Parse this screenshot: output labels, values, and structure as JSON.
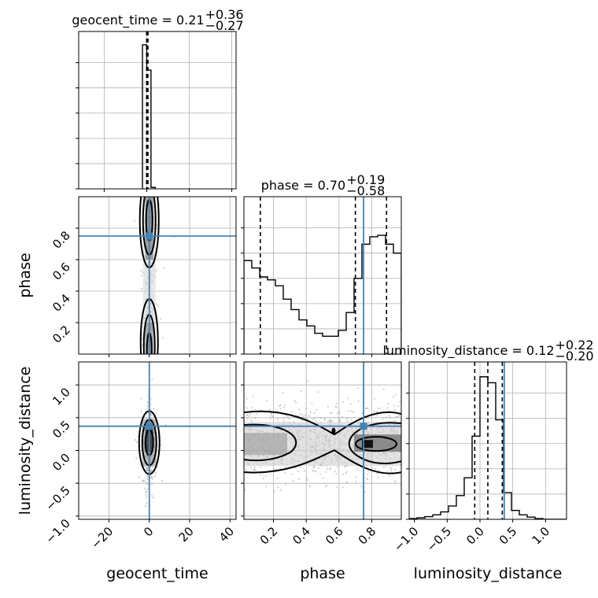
{
  "chart_data": [
    {
      "type": "histogram",
      "panel": "geocent_time-1d",
      "title": {
        "base": "geocent_time = 0.21",
        "sup": "+0.36",
        "sub": "−0.27"
      },
      "xlim": [
        -32,
        42
      ],
      "bin_edges": [
        -2,
        0,
        2,
        4
      ],
      "values": [
        0.97,
        0.8,
        0.01
      ],
      "quantiles": [
        -0.06,
        0.21,
        0.57
      ],
      "grid": true
    },
    {
      "type": "histogram",
      "panel": "phase-1d",
      "title": {
        "base": "phase = 0.70",
        "sup": "+0.19",
        "sub": "−0.58"
      },
      "xlim": [
        0.02,
        0.98
      ],
      "bin_edges": [
        0.02,
        0.068,
        0.116,
        0.164,
        0.212,
        0.26,
        0.308,
        0.356,
        0.404,
        0.452,
        0.5,
        0.548,
        0.596,
        0.644,
        0.692,
        0.74,
        0.788,
        0.836,
        0.884,
        0.932,
        0.98
      ],
      "values": [
        0.63,
        0.58,
        0.52,
        0.5,
        0.46,
        0.37,
        0.3,
        0.23,
        0.19,
        0.14,
        0.12,
        0.12,
        0.16,
        0.28,
        0.51,
        0.74,
        0.79,
        0.8,
        0.74,
        0.68
      ],
      "quantiles": [
        0.12,
        0.7,
        0.89
      ],
      "truth": 0.75,
      "grid": true
    },
    {
      "type": "histogram",
      "panel": "luminosity_distance-1d",
      "title": {
        "base": "luminosity_distance = 0.12",
        "sup": "+0.22",
        "sub": "−0.20"
      },
      "xlim": [
        -1.08,
        1.32
      ],
      "bin_edges": [
        -1.08,
        -0.96,
        -0.84,
        -0.72,
        -0.6,
        -0.48,
        -0.36,
        -0.24,
        -0.12,
        0.0,
        0.12,
        0.24,
        0.36,
        0.48,
        0.6,
        0.72,
        0.84,
        0.96,
        1.08,
        1.2,
        1.32
      ],
      "values": [
        0.005,
        0.01,
        0.018,
        0.03,
        0.05,
        0.09,
        0.16,
        0.28,
        0.56,
        0.96,
        0.92,
        0.67,
        0.18,
        0.06,
        0.03,
        0.015,
        0.005,
        0,
        0,
        0
      ],
      "quantiles": [
        -0.08,
        0.12,
        0.34
      ],
      "truth": 0.37,
      "grid": true
    },
    {
      "type": "scatter-contour",
      "panel": "geocent_time-vs-phase",
      "xlim": [
        -35,
        43
      ],
      "ylim": [
        0.0,
        1.0
      ],
      "truth": [
        0,
        0.75
      ],
      "grid": true
    },
    {
      "type": "scatter-contour",
      "panel": "geocent_time-vs-luminosity_distance",
      "xlim": [
        -35,
        43
      ],
      "ylim": [
        -1.05,
        1.35
      ],
      "truth": [
        0,
        0.37
      ],
      "grid": true
    },
    {
      "type": "scatter-contour",
      "panel": "phase-vs-luminosity_distance",
      "xlim": [
        0.02,
        0.98
      ],
      "ylim": [
        -1.05,
        1.35
      ],
      "truth": [
        0.75,
        0.37
      ],
      "grid": true
    }
  ],
  "axes": {
    "geocent_time": {
      "label": "geocent_time",
      "ticks": [
        "−20",
        "0",
        "20",
        "40"
      ],
      "tick_values": [
        -20,
        0,
        20,
        40
      ]
    },
    "phase_x": {
      "label": "phase",
      "ticks": [
        "0.2",
        "0.4",
        "0.6",
        "0.8"
      ],
      "tick_values": [
        0.2,
        0.4,
        0.6,
        0.8
      ]
    },
    "phase_y": {
      "label": "phase",
      "ticks": [
        "0.2",
        "0.4",
        "0.6",
        "0.8"
      ],
      "tick_values": [
        0.2,
        0.4,
        0.6,
        0.8
      ]
    },
    "luminosity_distance_x": {
      "label": "luminosity_distance",
      "ticks": [
        "−1.0",
        "−0.5",
        "0.0",
        "0.5",
        "1.0"
      ],
      "tick_values": [
        -1.0,
        -0.5,
        0.0,
        0.5,
        1.0
      ]
    },
    "luminosity_distance_y": {
      "label": "luminosity_distance",
      "ticks": [
        "−1.0",
        "−0.5",
        "0.0",
        "0.5",
        "1.0"
      ],
      "tick_values": [
        -1.0,
        -0.5,
        0.0,
        0.5,
        1.0
      ]
    }
  },
  "colors": {
    "truth": "#4682b4",
    "hist": "#000000",
    "grid": "#b0b0b0",
    "scatter": "#9a9a9a"
  }
}
